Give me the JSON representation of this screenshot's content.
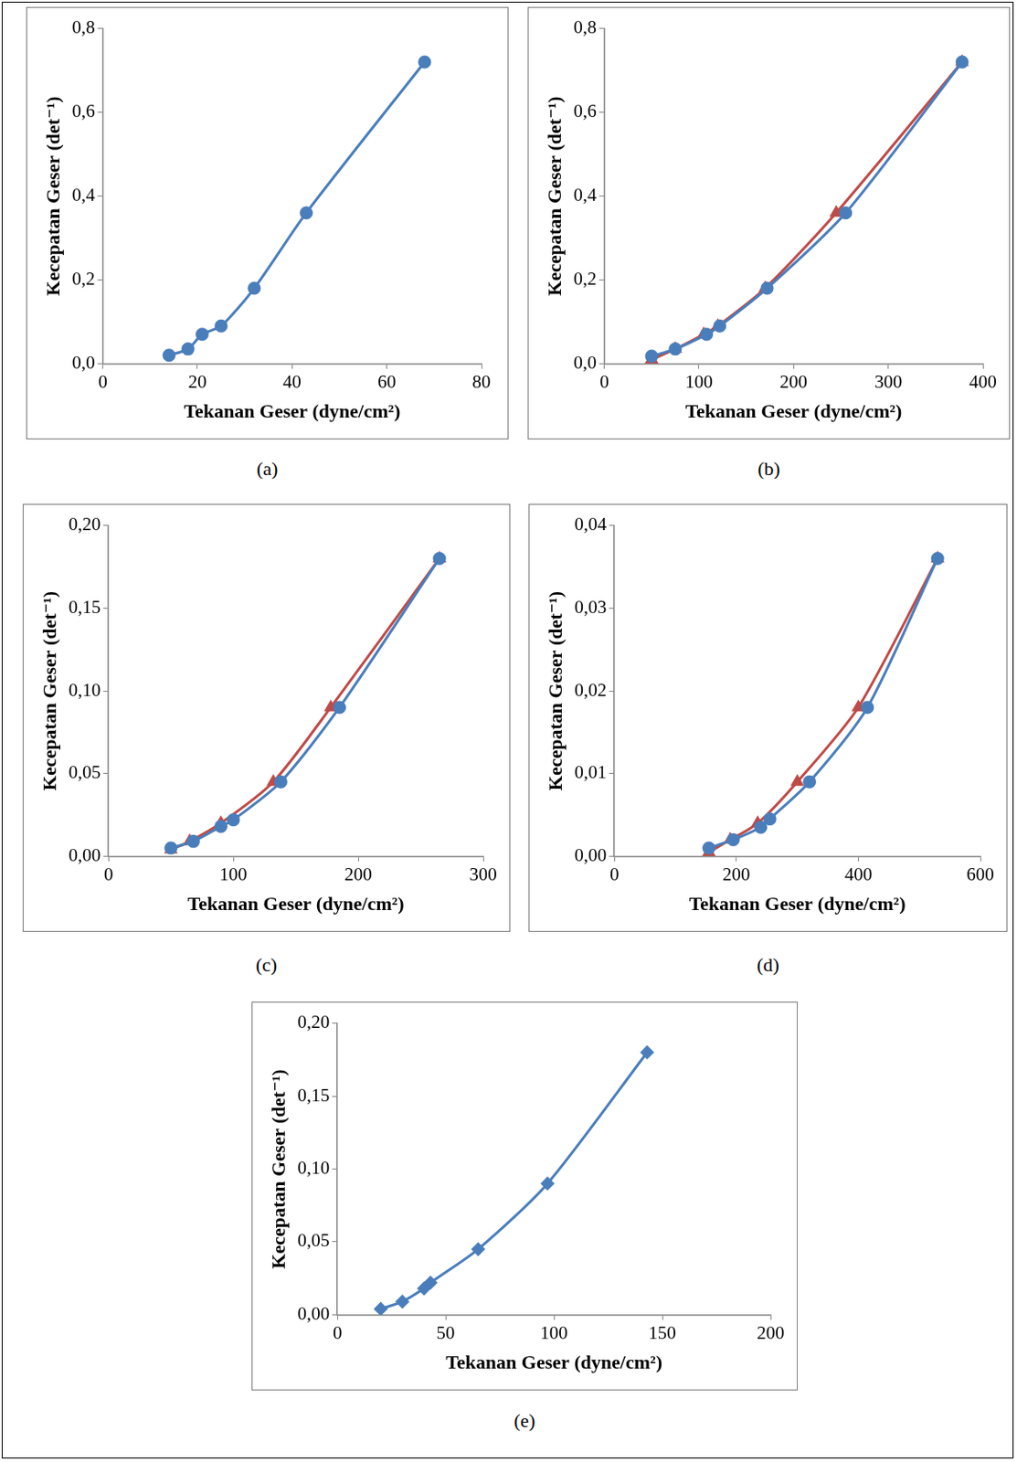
{
  "chart_data": [
    {
      "type": "scatter",
      "caption": "(a)",
      "x_label": "Tekanan Geser (dyne/cm²)",
      "y_label": "Kecepatan Geser (det⁻¹)",
      "grid": false,
      "xlim": [
        0,
        80
      ],
      "xticks": [
        0,
        20,
        40,
        60,
        80
      ],
      "ylim": [
        0,
        0.8
      ],
      "yticks": [
        {
          "value": 0,
          "label": "0,0"
        },
        {
          "value": 0.2,
          "label": "0,2"
        },
        {
          "value": 0.4,
          "label": "0,4"
        },
        {
          "value": 0.6,
          "label": "0,6"
        },
        {
          "value": 0.8,
          "label": "0,8"
        }
      ],
      "series": [
        {
          "color": "#4a7ebb",
          "marker": "circle",
          "line_style": "solid",
          "x": [
            14,
            18,
            21,
            25,
            32,
            43,
            68
          ],
          "values": [
            0.02,
            0.035,
            0.07,
            0.09,
            0.18,
            0.36,
            0.72
          ]
        }
      ]
    },
    {
      "type": "scatter",
      "caption": "(b)",
      "x_label": "Tekanan Geser (dyne/cm²)",
      "y_label": "Kecepatan Geser (det⁻¹)",
      "grid": false,
      "xlim": [
        0,
        400
      ],
      "xticks": [
        0,
        100,
        200,
        300,
        400
      ],
      "ylim": [
        0,
        0.8
      ],
      "yticks": [
        {
          "value": 0,
          "label": "0,0"
        },
        {
          "value": 0.2,
          "label": "0,2"
        },
        {
          "value": 0.4,
          "label": "0,4"
        },
        {
          "value": 0.6,
          "label": "0,6"
        },
        {
          "value": 0.8,
          "label": "0,8"
        }
      ],
      "series": [
        {
          "color": "#4a7ebb",
          "marker": "circle",
          "line_style": "solid",
          "x": [
            50,
            75,
            108,
            122,
            172,
            255,
            378
          ],
          "values": [
            0.018,
            0.035,
            0.07,
            0.09,
            0.18,
            0.36,
            0.72
          ]
        },
        {
          "color": "#be4b48",
          "marker": "triangle",
          "line_style": "solid",
          "x": [
            50,
            75,
            105,
            120,
            170,
            245,
            378
          ],
          "values": [
            0.01,
            0.035,
            0.07,
            0.09,
            0.18,
            0.36,
            0.72
          ]
        }
      ]
    },
    {
      "type": "scatter",
      "caption": "(c)",
      "x_label": "Tekanan Geser (dyne/cm²)",
      "y_label": "Kecepatan Geser (det⁻¹)",
      "grid": false,
      "xlim": [
        0,
        300
      ],
      "xticks": [
        0,
        100,
        200,
        300
      ],
      "ylim": [
        0,
        0.2
      ],
      "yticks": [
        {
          "value": 0,
          "label": "0,00"
        },
        {
          "value": 0.05,
          "label": "0,05"
        },
        {
          "value": 0.1,
          "label": "0,10"
        },
        {
          "value": 0.15,
          "label": "0,15"
        },
        {
          "value": 0.2,
          "label": "0,20"
        }
      ],
      "series": [
        {
          "color": "#4a7ebb",
          "marker": "circle",
          "line_style": "solid",
          "x": [
            50,
            68,
            90,
            100,
            138,
            185,
            265
          ],
          "values": [
            0.005,
            0.009,
            0.018,
            0.022,
            0.045,
            0.09,
            0.18
          ]
        },
        {
          "color": "#be4b48",
          "marker": "triangle",
          "line_style": "solid",
          "x": [
            50,
            65,
            90,
            132,
            178,
            265
          ],
          "values": [
            0.004,
            0.009,
            0.02,
            0.045,
            0.09,
            0.18
          ]
        }
      ]
    },
    {
      "type": "scatter",
      "caption": "(d)",
      "x_label": "Tekanan Geser (dyne/cm²)",
      "y_label": "Kecepatan Geser (det⁻¹)",
      "grid": false,
      "xlim": [
        0,
        600
      ],
      "xticks": [
        0,
        200,
        400,
        600
      ],
      "ylim": [
        0,
        0.04
      ],
      "yticks": [
        {
          "value": 0,
          "label": "0,00"
        },
        {
          "value": 0.01,
          "label": "0,01"
        },
        {
          "value": 0.02,
          "label": "0,02"
        },
        {
          "value": 0.03,
          "label": "0,03"
        },
        {
          "value": 0.04,
          "label": "0,04"
        }
      ],
      "series": [
        {
          "color": "#4a7ebb",
          "marker": "circle",
          "line_style": "solid",
          "x": [
            155,
            195,
            240,
            255,
            320,
            415,
            530
          ],
          "values": [
            0.001,
            0.002,
            0.0035,
            0.0045,
            0.009,
            0.018,
            0.036
          ]
        },
        {
          "color": "#be4b48",
          "marker": "triangle",
          "line_style": "solid",
          "x": [
            155,
            190,
            235,
            300,
            400,
            530
          ],
          "values": [
            0.0005,
            0.002,
            0.004,
            0.009,
            0.018,
            0.036
          ]
        }
      ]
    },
    {
      "type": "scatter",
      "caption": "(e)",
      "x_label": "Tekanan Geser (dyne/cm²)",
      "y_label": "Kecepatan Geser (det⁻¹)",
      "grid": false,
      "xlim": [
        0,
        200
      ],
      "xticks": [
        0,
        50,
        100,
        150,
        200
      ],
      "ylim": [
        0,
        0.2
      ],
      "yticks": [
        {
          "value": 0,
          "label": "0,00"
        },
        {
          "value": 0.05,
          "label": "0,05"
        },
        {
          "value": 0.1,
          "label": "0,10"
        },
        {
          "value": 0.15,
          "label": "0,15"
        },
        {
          "value": 0.2,
          "label": "0,20"
        }
      ],
      "series": [
        {
          "color": "#4a7ebb",
          "marker": "diamond",
          "line_style": "solid",
          "x": [
            20,
            30,
            40,
            43,
            65,
            97,
            143
          ],
          "values": [
            0.004,
            0.009,
            0.018,
            0.022,
            0.045,
            0.09,
            0.18
          ]
        }
      ]
    }
  ]
}
